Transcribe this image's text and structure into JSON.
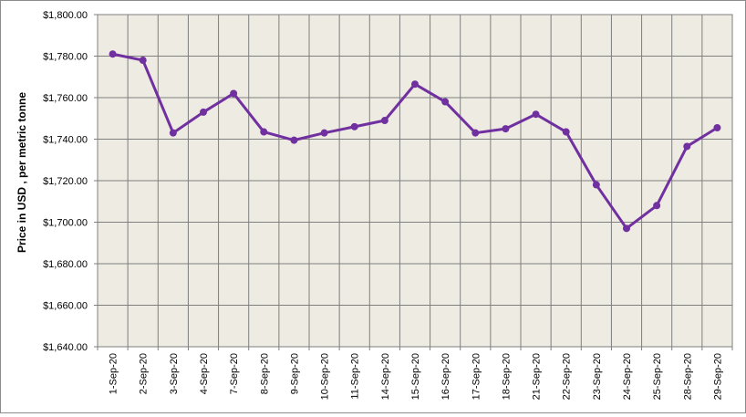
{
  "chart_data": {
    "type": "line",
    "title": "",
    "xlabel": "",
    "ylabel": "Price in USD , per metric tonne",
    "ylim": [
      1640,
      1800
    ],
    "ytick_step": 20,
    "y_tick_labels": [
      "$1,640.00",
      "$1,660.00",
      "$1,680.00",
      "$1,700.00",
      "$1,720.00",
      "$1,740.00",
      "$1,760.00",
      "$1,780.00",
      "$1,800.00"
    ],
    "grid": true,
    "legend": "none",
    "colors": {
      "line": "#7030a0",
      "plot_bg": "#eeebe2",
      "grid": "#7f7f7f"
    },
    "categories": [
      "1-Sep-20",
      "2-Sep-20",
      "3-Sep-20",
      "4-Sep-20",
      "7-Sep-20",
      "8-Sep-20",
      "9-Sep-20",
      "10-Sep-20",
      "11-Sep-20",
      "14-Sep-20",
      "15-Sep-20",
      "16-Sep-20",
      "17-Sep-20",
      "18-Sep-20",
      "21-Sep-20",
      "22-Sep-20",
      "23-Sep-20",
      "24-Sep-20",
      "25-Sep-20",
      "28-Sep-20",
      "29-Sep-20"
    ],
    "series": [
      {
        "values": [
          1781,
          1778,
          1743,
          1753,
          1762,
          1743.5,
          1739.5,
          1743,
          1746,
          1749,
          1766.5,
          1758,
          1743,
          1745,
          1752,
          1743.5,
          1718,
          1697,
          1708,
          1736.5,
          1745.5
        ]
      }
    ]
  }
}
